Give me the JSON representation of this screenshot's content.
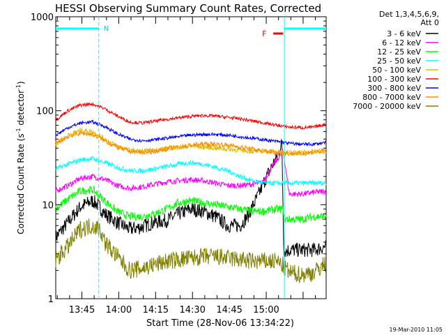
{
  "chart_data": {
    "type": "line",
    "title": "HESSI Observing Summary Count Rates, Corrected",
    "xlabel": "Start Time (28-Nov-06 13:34:22)",
    "ylabel_main": "Corrected Count Rate (s",
    "ylabel_exp1": "-1",
    "ylabel_mid": " detector",
    "ylabel_exp2": "-1",
    "ylabel_end": ")",
    "y_scale": "log",
    "ylim": [
      1,
      1000
    ],
    "xlim": [
      0,
      110
    ],
    "x_unit": "minutes since 13:34:22",
    "y_tick_labels": [
      {
        "value": 1,
        "label": "1"
      },
      {
        "value": 10,
        "label": "10"
      },
      {
        "value": 100,
        "label": "100"
      },
      {
        "value": 1000,
        "label": "1000"
      }
    ],
    "x_tick_labels": [
      {
        "value": 10.63,
        "label": "13:45"
      },
      {
        "value": 25.63,
        "label": "14:00"
      },
      {
        "value": 40.63,
        "label": "14:15"
      },
      {
        "value": 55.63,
        "label": "14:30"
      },
      {
        "value": 70.63,
        "label": "14:45"
      },
      {
        "value": 85.63,
        "label": "15:00"
      }
    ],
    "legend_header": [
      "Det 1,3,4,5,6,9,",
      "Att 0"
    ],
    "legend_placement": "right",
    "annotations": {
      "n_label": "N",
      "f_label": "F",
      "night_intervals": [
        [
          0,
          17.5
        ],
        [
          93.0,
          110
        ]
      ],
      "flare_interval": [
        88.5,
        92.5
      ]
    },
    "footer_timestamp": "19-Mar-2010 11:05",
    "series": [
      {
        "name": "3 - 6 keV",
        "color": "#000000",
        "x": [
          0,
          5,
          10,
          15,
          17,
          20,
          25,
          30,
          35,
          40,
          45,
          50,
          55,
          60,
          65,
          70,
          75,
          78,
          82,
          85,
          88,
          90,
          91,
          92,
          92.8,
          95,
          100,
          105,
          110
        ],
        "y": [
          4.5,
          6.5,
          9.5,
          11,
          10,
          8,
          6.5,
          5.5,
          5.8,
          6.5,
          6.8,
          8,
          9,
          8.5,
          7.5,
          6,
          6,
          7.5,
          12,
          18,
          26,
          32,
          38,
          45,
          3.2,
          3.3,
          3.3,
          3.3,
          3.6
        ]
      },
      {
        "name": "6 - 12 keV",
        "color": "#ff00ff",
        "x": [
          0,
          5,
          10,
          15,
          20,
          25,
          30,
          35,
          40,
          45,
          50,
          55,
          60,
          65,
          70,
          75,
          80,
          84,
          86,
          88,
          90,
          91.5,
          92.5,
          95,
          100,
          105,
          110
        ],
        "y": [
          14,
          16,
          19,
          20,
          18.5,
          16,
          15,
          15.5,
          16.5,
          17.5,
          18,
          18.5,
          18,
          17,
          16,
          16,
          16.5,
          17,
          21,
          25,
          30,
          34,
          38,
          13,
          13,
          13.5,
          14
        ]
      },
      {
        "name": "12 - 25 keV",
        "color": "#00ff00",
        "x": [
          0,
          5,
          10,
          15,
          20,
          25,
          30,
          35,
          40,
          45,
          50,
          55,
          60,
          65,
          70,
          75,
          80,
          85,
          90,
          92.5,
          93,
          95,
          100,
          105,
          110
        ],
        "y": [
          9,
          11.5,
          14,
          14.5,
          11,
          8.5,
          7.5,
          7.5,
          8,
          9,
          10.5,
          11,
          10.5,
          10,
          9.5,
          9,
          8.5,
          8.5,
          9,
          9,
          7,
          7,
          7,
          7.5,
          7.5
        ]
      },
      {
        "name": "25 - 50 keV",
        "color": "#00ffff",
        "x": [
          0,
          5,
          10,
          15,
          20,
          25,
          30,
          35,
          40,
          45,
          50,
          55,
          60,
          65,
          70,
          75,
          80,
          85,
          90,
          95,
          100,
          105,
          110
        ],
        "y": [
          24,
          27,
          30,
          31,
          28,
          25,
          23,
          23,
          24,
          25.5,
          27,
          28,
          27,
          25,
          23,
          20,
          18,
          17,
          17,
          17,
          17,
          17,
          17
        ]
      },
      {
        "name": "50 - 100 keV",
        "color": "#e0c000",
        "x": [
          0,
          5,
          10,
          15,
          20,
          25,
          30,
          35,
          40,
          45,
          50,
          55,
          60,
          65,
          70,
          75,
          80,
          85,
          90,
          95,
          100,
          105,
          110
        ],
        "y": [
          44,
          55,
          62,
          60,
          50,
          42,
          38,
          37,
          38,
          40,
          41,
          42,
          41,
          40,
          39,
          38,
          37,
          37,
          37,
          36,
          36,
          37,
          37
        ]
      },
      {
        "name": "100 - 300 keV",
        "color": "#ff0000",
        "x": [
          0,
          5,
          10,
          15,
          20,
          25,
          30,
          35,
          40,
          45,
          50,
          55,
          60,
          65,
          70,
          75,
          80,
          85,
          90,
          95,
          100,
          105,
          110
        ],
        "y": [
          80,
          100,
          115,
          118,
          105,
          88,
          76,
          74,
          77,
          81,
          84,
          87,
          89,
          88,
          85,
          82,
          78,
          74,
          70,
          67,
          66,
          67,
          72
        ]
      },
      {
        "name": "300 - 800 keV",
        "color": "#0000ff",
        "x": [
          0,
          5,
          10,
          15,
          20,
          25,
          30,
          35,
          40,
          45,
          50,
          55,
          60,
          65,
          70,
          75,
          80,
          85,
          90,
          95,
          100,
          105,
          110
        ],
        "y": [
          55,
          66,
          74,
          76,
          68,
          57,
          50,
          48,
          49,
          51,
          53,
          55,
          56,
          56,
          55,
          53,
          51,
          49,
          47,
          45,
          44,
          44,
          46
        ]
      },
      {
        "name": "800 - 7000 keV",
        "color": "#ff8c00",
        "x": [
          0,
          5,
          10,
          15,
          20,
          25,
          30,
          35,
          40,
          45,
          50,
          55,
          60,
          65,
          70,
          75,
          80,
          85,
          90,
          95,
          100,
          105,
          110
        ],
        "y": [
          45,
          53,
          58,
          56,
          48,
          41,
          37,
          36,
          37,
          39,
          41,
          43,
          44,
          44,
          43,
          41,
          39,
          37,
          36,
          35,
          35,
          36,
          38
        ]
      },
      {
        "name": "7000 - 20000 keV",
        "color": "#808000",
        "x": [
          0,
          5,
          10,
          15,
          18,
          20,
          25,
          30,
          35,
          40,
          45,
          50,
          55,
          60,
          65,
          70,
          75,
          80,
          85,
          90,
          92.8,
          95,
          100,
          105,
          110
        ],
        "y": [
          2.6,
          3.6,
          5.5,
          6,
          5.5,
          4,
          2.8,
          2.0,
          2.1,
          2.3,
          2.5,
          2.6,
          2.7,
          2.8,
          2.8,
          2.7,
          2.6,
          2.5,
          2.5,
          2.5,
          2.2,
          1.9,
          1.8,
          1.9,
          2.4
        ]
      }
    ]
  }
}
